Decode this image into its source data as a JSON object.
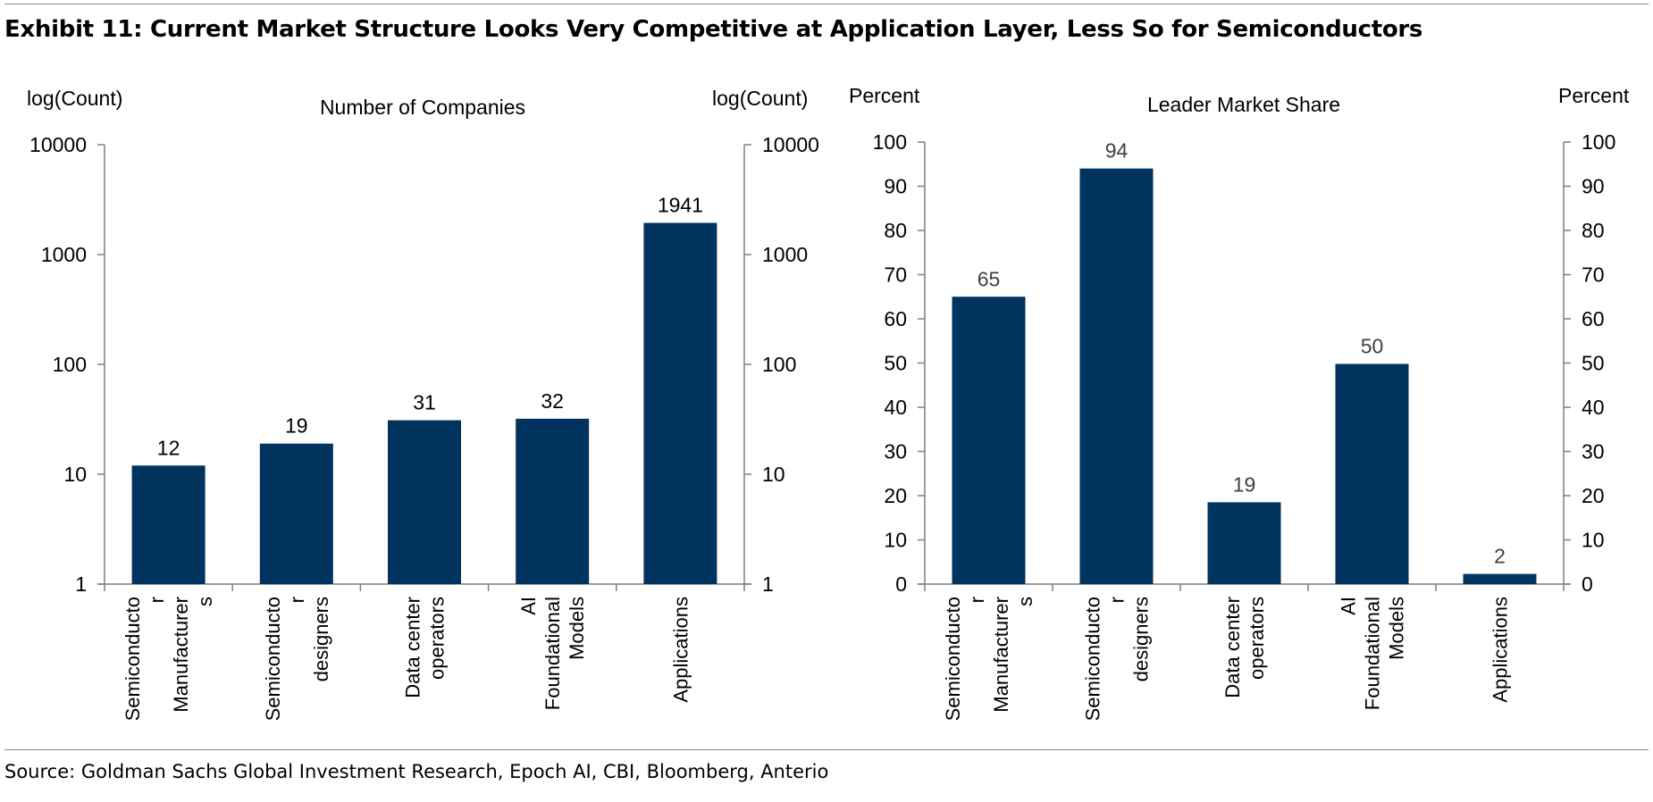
{
  "title": "Exhibit 11: Current Market Structure Looks Very Competitive at Application Layer, Less So for Semiconductors",
  "source": "Source: Goldman Sachs Global Investment Research, Epoch AI, CBI, Bloomberg, Anterio",
  "colors": {
    "bar": "#00335E",
    "axis": "#7f7f7f",
    "label_right": "#404040"
  },
  "chart_data": [
    {
      "type": "bar",
      "title": "Number of Companies",
      "ylabel": "log(Count)",
      "ylabel_right": "log(Count)",
      "yscale": "log",
      "ylim": [
        1,
        10000
      ],
      "yticks": [
        1,
        10,
        100,
        1000,
        10000
      ],
      "categories": [
        [
          "Semiconducto",
          "r",
          "Manufacturer",
          "s"
        ],
        [
          "Semiconducto",
          "r",
          "designers"
        ],
        [
          "Data center",
          "operators"
        ],
        [
          "AI",
          "Foundational",
          "Models"
        ],
        [
          "Applications"
        ]
      ],
      "values": [
        12,
        19,
        31,
        32,
        1941
      ],
      "data_labels": [
        "12",
        "19",
        "31",
        "32",
        "1941"
      ]
    },
    {
      "type": "bar",
      "title": "Leader Market Share",
      "ylabel": "Percent",
      "ylabel_right": "Percent",
      "yscale": "linear",
      "ylim": [
        0,
        100
      ],
      "yticks": [
        0,
        10,
        20,
        30,
        40,
        50,
        60,
        70,
        80,
        90,
        100
      ],
      "categories": [
        [
          "Semiconducto",
          "r",
          "Manufacturer",
          "s"
        ],
        [
          "Semiconducto",
          "r",
          "designers"
        ],
        [
          "Data center",
          "operators"
        ],
        [
          "AI",
          "Foundational",
          "Models"
        ],
        [
          "Applications"
        ]
      ],
      "values": [
        65,
        94,
        18.5,
        49.8,
        2.3
      ],
      "data_labels": [
        "65",
        "94",
        "19",
        "50",
        "2"
      ]
    }
  ]
}
